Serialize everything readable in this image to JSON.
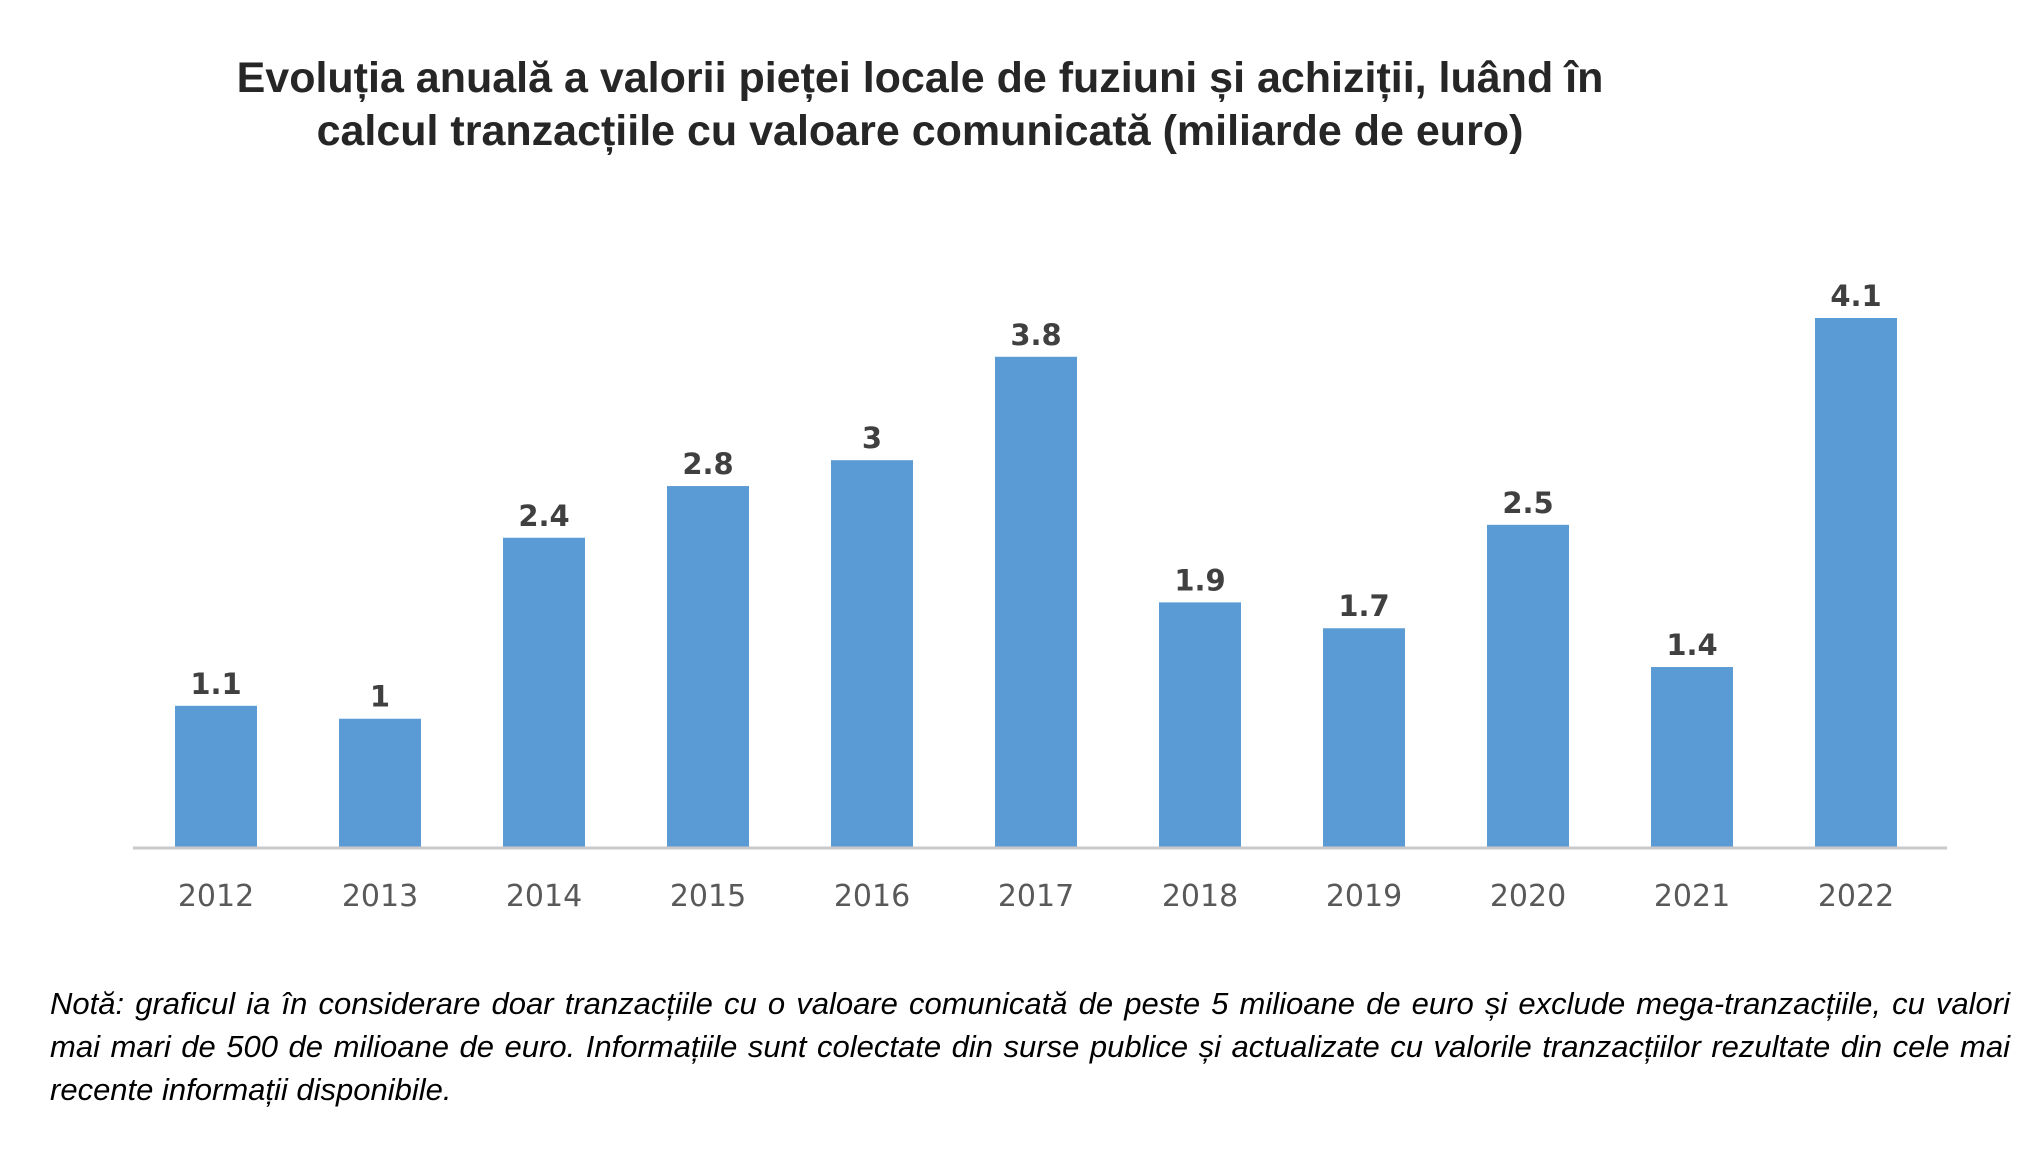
{
  "chart_data": {
    "type": "bar",
    "title": "Evoluția anuală a valorii pieței locale de fuziuni și achiziții, luând în calcul tranzacțiile cu valoare comunicată (miliarde de euro)",
    "categories": [
      "2012",
      "2013",
      "2014",
      "2015",
      "2016",
      "2017",
      "2018",
      "2019",
      "2020",
      "2021",
      "2022"
    ],
    "values": [
      1.1,
      1,
      2.4,
      2.8,
      3,
      3.8,
      1.9,
      1.7,
      2.5,
      1.4,
      4.1
    ],
    "data_labels": [
      "1.1",
      "1",
      "2.4",
      "2.8",
      "3",
      "3.8",
      "1.9",
      "1.7",
      "2.5",
      "1.4",
      "4.1"
    ],
    "xlabel": "",
    "ylabel": "",
    "ylim": [
      0,
      4.1
    ],
    "grid": false,
    "legend": "none",
    "bar_color": "#5b9bd5"
  },
  "note": "Notă: graficul ia în considerare doar tranzacțiile cu o valoare comunicată de peste 5 milioane de euro și exclude mega-tranzacțiile, cu valori mai mari de 500 de milioane de euro. Informațiile sunt colectate din surse publice și actualizate cu valorile tranzacțiilor rezultate din cele mai recente informații disponibile."
}
